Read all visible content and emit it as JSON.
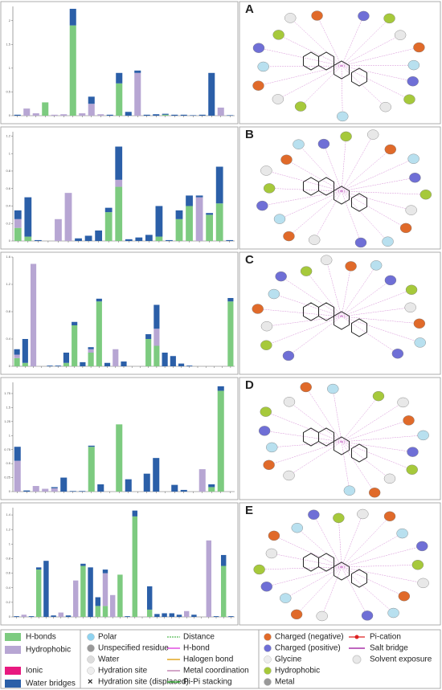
{
  "chart_data": [
    {
      "type": "bar",
      "stacked": true,
      "panel": "A",
      "ylim": [
        0,
        2.3
      ],
      "yticks": [
        0,
        0.5,
        1,
        1.5,
        2
      ],
      "categories": [
        null,
        null,
        null,
        null,
        null,
        null,
        null,
        null,
        null,
        null,
        null,
        null,
        null,
        null,
        null,
        null,
        null,
        null,
        null,
        null,
        null,
        null,
        null,
        null
      ],
      "series": [
        {
          "color": "#7dcb80",
          "values": [
            0,
            0,
            0,
            0.28,
            0,
            0,
            1.9,
            0,
            0,
            0,
            0,
            0.68,
            0,
            0,
            0,
            0,
            0.02,
            0,
            0,
            0,
            0,
            0,
            0,
            0
          ]
        },
        {
          "color": "#b7a6d3",
          "values": [
            0,
            0.15,
            0.05,
            0,
            0.02,
            0.03,
            0,
            0.05,
            0.25,
            0.03,
            0,
            0,
            0,
            0.9,
            0,
            0,
            0,
            0,
            0,
            0,
            0,
            0,
            0.17,
            0
          ]
        },
        {
          "color": "#2b5fa8",
          "values": [
            0.02,
            0,
            0,
            0,
            0,
            0,
            0.35,
            0,
            0.15,
            0,
            0.02,
            0.22,
            0.08,
            0.05,
            0.02,
            0.03,
            0.02,
            0.02,
            0.02,
            0.01,
            0.02,
            0.9,
            0,
            0.01
          ]
        }
      ]
    },
    {
      "type": "bar",
      "stacked": true,
      "panel": "B",
      "ylim": [
        0,
        1.25
      ],
      "yticks": [
        0,
        0.2,
        0.4,
        0.6,
        0.8,
        1,
        1.2
      ],
      "categories": [
        null,
        null,
        null,
        null,
        null,
        null,
        null,
        null,
        null,
        null,
        null,
        null,
        null,
        null,
        null,
        null,
        null,
        null,
        null,
        null,
        null,
        null
      ],
      "series": [
        {
          "color": "#7dcb80",
          "values": [
            0.15,
            0.05,
            0,
            0,
            0,
            0,
            0,
            0,
            0,
            0.33,
            0.62,
            0,
            0,
            0,
            0.05,
            0,
            0.25,
            0.4,
            0,
            0.3,
            0.43,
            0
          ]
        },
        {
          "color": "#b7a6d3",
          "values": [
            0.1,
            0,
            0,
            0,
            0.25,
            0.55,
            0,
            0,
            0,
            0,
            0.08,
            0,
            0,
            0,
            0,
            0,
            0,
            0,
            0.5,
            0,
            0,
            0
          ]
        },
        {
          "color": "#2b5fa8",
          "values": [
            0.1,
            0.45,
            0.01,
            0,
            0,
            0,
            0.03,
            0.06,
            0.12,
            0.05,
            0.38,
            0.02,
            0.04,
            0.07,
            0.35,
            0.01,
            0.1,
            0.12,
            0.02,
            0.02,
            0.42,
            0.01
          ]
        }
      ]
    },
    {
      "type": "bar",
      "stacked": true,
      "panel": "C",
      "ylim": [
        0,
        1.6
      ],
      "yticks": [
        0,
        0.4,
        0.8,
        1.2,
        1.6
      ],
      "categories": [
        null,
        null,
        null,
        null,
        null,
        null,
        null,
        null,
        null,
        null,
        null,
        null,
        null,
        null,
        null,
        null,
        null,
        null,
        null,
        null,
        null,
        null,
        null,
        null,
        null,
        null,
        null
      ],
      "series": [
        {
          "color": "#7dcb80",
          "values": [
            0.12,
            0.05,
            0,
            0,
            0,
            0,
            0.05,
            0.6,
            0,
            0.2,
            0.95,
            0,
            0,
            0,
            0,
            0,
            0.4,
            0.3,
            0,
            0,
            0,
            0,
            0,
            0,
            0,
            0,
            0.95
          ]
        },
        {
          "color": "#b7a6d3",
          "values": [
            0.05,
            0,
            1.5,
            0,
            0,
            0,
            0,
            0,
            0,
            0.05,
            0,
            0,
            0.25,
            0,
            0,
            0,
            0,
            0.25,
            0,
            0,
            0,
            0,
            0,
            0,
            0,
            0,
            0
          ]
        },
        {
          "color": "#2b5fa8",
          "values": [
            0.08,
            0.35,
            0,
            0,
            0.01,
            0.01,
            0.15,
            0.05,
            0.06,
            0.03,
            0.04,
            0.05,
            0,
            0.07,
            0,
            0,
            0.07,
            0.35,
            0.2,
            0.15,
            0.04,
            0.01,
            0,
            0,
            0,
            0,
            0.05
          ]
        }
      ]
    },
    {
      "type": "bar",
      "stacked": true,
      "panel": "D",
      "ylim": [
        0,
        1.95
      ],
      "yticks": [
        0,
        0.25,
        0.5,
        0.75,
        1,
        1.25,
        1.5,
        1.75
      ],
      "categories": [
        null,
        null,
        null,
        null,
        null,
        null,
        null,
        null,
        null,
        null,
        null,
        null,
        null,
        null,
        null,
        null,
        null,
        null,
        null,
        null,
        null,
        null,
        null,
        null
      ],
      "series": [
        {
          "color": "#7dcb80",
          "values": [
            0,
            0,
            0,
            0,
            0,
            0,
            0,
            0,
            0.8,
            0,
            0,
            1.2,
            0,
            0,
            0,
            0,
            0,
            0,
            0,
            0,
            0,
            0.08,
            1.8,
            0
          ]
        },
        {
          "color": "#b7a6d3",
          "values": [
            0.55,
            0,
            0.1,
            0.05,
            0.06,
            0,
            0,
            0,
            0,
            0,
            0,
            0,
            0,
            0,
            0,
            0,
            0,
            0,
            0,
            0,
            0.4,
            0,
            0,
            0
          ]
        },
        {
          "color": "#2b5fa8",
          "values": [
            0.25,
            0.02,
            0,
            0,
            0.02,
            0.25,
            0.01,
            0.01,
            0.02,
            0.13,
            0,
            0,
            0.22,
            0,
            0.32,
            0.6,
            0,
            0.12,
            0.03,
            0,
            0,
            0.05,
            0.08,
            0
          ]
        }
      ]
    },
    {
      "type": "bar",
      "stacked": true,
      "panel": "E",
      "ylim": [
        0,
        1.5
      ],
      "yticks": [
        0,
        0.2,
        0.4,
        0.6,
        0.8,
        1,
        1.2,
        1.4
      ],
      "categories": [
        null,
        null,
        null,
        null,
        null,
        null,
        null,
        null,
        null,
        null,
        null,
        null,
        null,
        null,
        null,
        null,
        null,
        null,
        null,
        null,
        null,
        null,
        null,
        null,
        null,
        null,
        null,
        null,
        null,
        null
      ],
      "series": [
        {
          "color": "#7dcb80",
          "values": [
            0,
            0,
            0,
            0.65,
            0,
            0,
            0,
            0,
            0,
            0.7,
            0,
            0.15,
            0.15,
            0,
            0.58,
            0,
            1.38,
            0,
            0.1,
            0,
            0,
            0,
            0,
            0,
            0,
            0,
            0,
            0,
            0.7,
            0
          ]
        },
        {
          "color": "#b7a6d3",
          "values": [
            0,
            0.03,
            0,
            0,
            0,
            0,
            0.06,
            0,
            0.5,
            0,
            0,
            0,
            0.45,
            0.3,
            0,
            0,
            0,
            0,
            0,
            0,
            0,
            0,
            0,
            0.08,
            0,
            0,
            1.05,
            0,
            0,
            0
          ]
        },
        {
          "color": "#2b5fa8",
          "values": [
            0.01,
            0,
            0.01,
            0.03,
            0.77,
            0.02,
            0,
            0.02,
            0,
            0.03,
            0.68,
            0.12,
            0.05,
            0,
            0,
            0.01,
            0.08,
            0,
            0.32,
            0.04,
            0.05,
            0.05,
            0.03,
            0,
            0.03,
            0,
            0,
            0.01,
            0.15,
            0.01
          ]
        }
      ]
    }
  ],
  "legend": {
    "bars": [
      {
        "label": "H-bonds",
        "color": "#7dcb80"
      },
      {
        "label": "Hydrophobic",
        "color": "#b7a6d3"
      },
      {
        "label": "Ionic",
        "color": "#e8197f"
      },
      {
        "label": "Water bridges",
        "color": "#2b5fa8"
      }
    ],
    "residues": [
      "Polar",
      "Unspecified residue",
      "Water",
      "Hydration site",
      "Hydration site (displaced)"
    ],
    "interactions": [
      "Distance",
      "H-bond",
      "Halogen bond",
      "Metal coordination",
      "Pi-Pi stacking"
    ],
    "charges": [
      "Charged (negative)",
      "Charged (positive)",
      "Glycine",
      "Hydrophobic",
      "Metal"
    ],
    "other": [
      "Pi-cation",
      "Salt bridge",
      "Solvent exposure"
    ]
  }
}
